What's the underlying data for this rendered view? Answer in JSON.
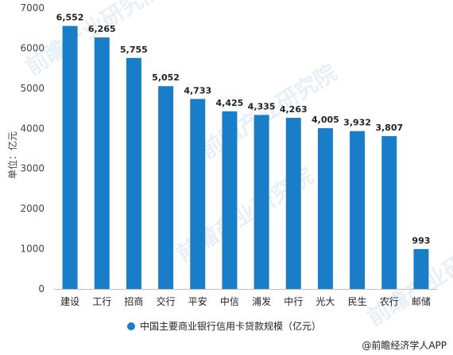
{
  "chart_data": {
    "type": "bar",
    "categories": [
      "建设",
      "工行",
      "招商",
      "交行",
      "平安",
      "中信",
      "浦发",
      "中行",
      "光大",
      "民生",
      "农行",
      "邮储"
    ],
    "series": [
      {
        "name": "中国主要商业银行信用卡贷款规模（亿元）",
        "values": [
          6552,
          6265,
          5755,
          5052,
          4733,
          4425,
          4335,
          4263,
          4005,
          3932,
          3807,
          993
        ],
        "labels": [
          "6,552",
          "6,265",
          "5,755",
          "5,052",
          "4,733",
          "4,425",
          "4,335",
          "4,263",
          "4,005",
          "3,932",
          "3,807",
          "993"
        ],
        "color": "#1a7dc8"
      }
    ],
    "ylabel": "单位：亿元",
    "xlabel": "",
    "ylim": [
      0,
      7000
    ],
    "yticks": [
      0,
      1000,
      2000,
      3000,
      4000,
      5000,
      6000,
      7000
    ],
    "grid": false,
    "legend_position": "bottom"
  },
  "credit": "@前瞻经济学人APP",
  "watermark": "前瞻产业研究院",
  "colors": {
    "bar": "#1a7dc8",
    "axis": "#bfbfbf"
  }
}
